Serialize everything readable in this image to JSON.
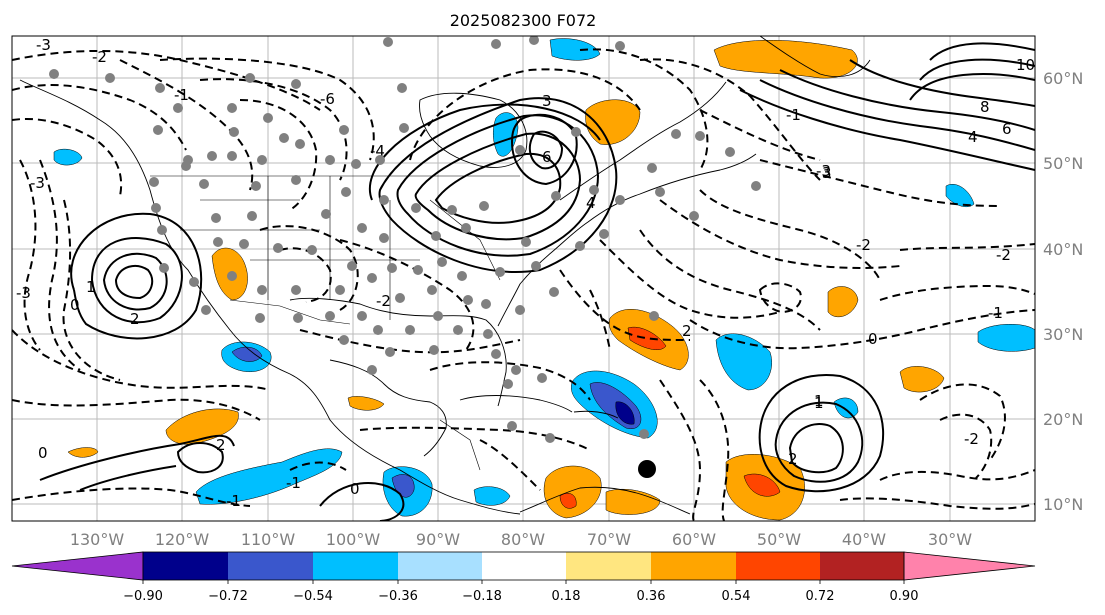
{
  "figure": {
    "title": "2025082300 F072"
  },
  "map": {
    "lon_labels": [
      "130°W",
      "120°W",
      "110°W",
      "100°W",
      "90°W",
      "80°W",
      "70°W",
      "60°W",
      "50°W",
      "40°W",
      "30°W"
    ],
    "lat_labels": [
      "60°N",
      "50°N",
      "40°N",
      "30°N",
      "20°N",
      "10°N"
    ],
    "contour_labels": [
      "-3",
      "-2",
      "-1",
      "0",
      "1",
      "2",
      "3",
      "4",
      "6",
      "8",
      "10",
      "-1",
      "-2",
      "-3",
      "0",
      "1",
      "2",
      "-1",
      "-2",
      "-3",
      "-4",
      "-6",
      "-3",
      "-2",
      "-1",
      "0",
      "2",
      "1",
      "-2",
      "0",
      "-1",
      "2",
      "3",
      "4",
      "6"
    ],
    "grid": true,
    "marker": "black-circle"
  },
  "colorbar": {
    "ticks": [
      "−0.90",
      "−0.72",
      "−0.54",
      "−0.36",
      "−0.18",
      "0.18",
      "0.36",
      "0.54",
      "0.72",
      "0.90"
    ],
    "colors": {
      "below": "#9a32cd",
      "b1": "#00008b",
      "b2": "#3a57cc",
      "b3": "#00bfff",
      "b4": "#a8e0ff",
      "mid": "#ffffff",
      "b6": "#ffe680",
      "b7": "#ffa500",
      "b8": "#ff4500",
      "b9": "#b22222",
      "above": "#ff82ab"
    }
  }
}
